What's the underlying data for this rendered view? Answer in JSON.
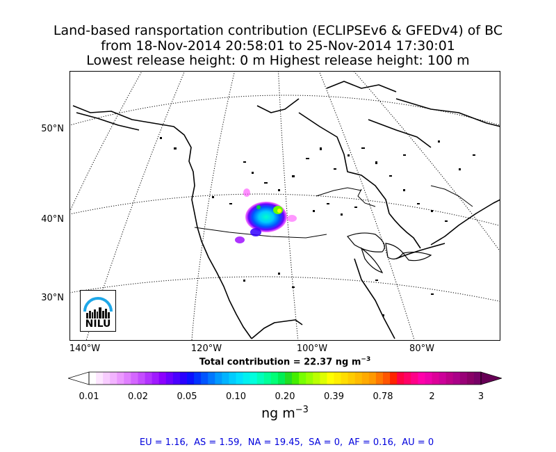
{
  "title": {
    "line1": "Land-based ransportation contribution (ECLIPSEv6 & GFEDv4) of BC",
    "line2": "from 18-Nov-2014 20:58:01 to 25-Nov-2014 17:30:01",
    "line3": "Lowest release height: 0 m      Highest release height: 100 m"
  },
  "map": {
    "lat_labels": [
      "50°N",
      "40°N",
      "30°N"
    ],
    "lon_labels": [
      "140°W",
      "120°W",
      "100°W",
      "80°W"
    ],
    "plume_colors": [
      "#ff44ff",
      "#9900ff",
      "#3300ff",
      "#0066ff",
      "#00ccff",
      "#00ffcc",
      "#66ff00",
      "#ffff00"
    ]
  },
  "total": {
    "text_prefix": "Total contribution = 22.37 ng m",
    "exponent": "−3"
  },
  "colorbar": {
    "ticks": [
      "0.01",
      "0.02",
      "0.05",
      "0.10",
      "0.20",
      "0.39",
      "0.78",
      "2",
      "3"
    ],
    "colors": [
      "#ffffff",
      "#fde6ff",
      "#f8ccff",
      "#f2b3ff",
      "#eb99ff",
      "#e080ff",
      "#d466ff",
      "#c44dff",
      "#b233ff",
      "#a01aff",
      "#8c00ff",
      "#6a00ff",
      "#4a00ff",
      "#2a00ff",
      "#0a10ff",
      "#0033ff",
      "#0055ff",
      "#0077ff",
      "#0099ff",
      "#00b3ff",
      "#00ccff",
      "#00e0ff",
      "#00f0f0",
      "#00ffdd",
      "#00ffbb",
      "#00ff99",
      "#00ff77",
      "#00ee55",
      "#22dd22",
      "#44ee00",
      "#77ff00",
      "#99ff00",
      "#bbff00",
      "#ddff00",
      "#ffff00",
      "#ffee00",
      "#ffdd00",
      "#ffcc00",
      "#ffbb00",
      "#ffaa00",
      "#ff9900",
      "#ff7700",
      "#ff5500",
      "#ff2200",
      "#ff0044",
      "#ff0066",
      "#ff0088",
      "#ff00aa",
      "#ee00aa",
      "#dd0099",
      "#cc0099",
      "#bb0088",
      "#aa0088",
      "#990077",
      "#880066",
      "#770066"
    ],
    "under_color": "#ffffff",
    "over_color": "#660055"
  },
  "unit": {
    "base": "ng m",
    "exponent": "−3"
  },
  "regions": "EU = 1.16,  AS = 1.59,  NA = 19.45,  SA = 0,  AF = 0.16,  AU = 0",
  "logo": {
    "text": "NILU",
    "arc_color": "#1ea7e8"
  }
}
